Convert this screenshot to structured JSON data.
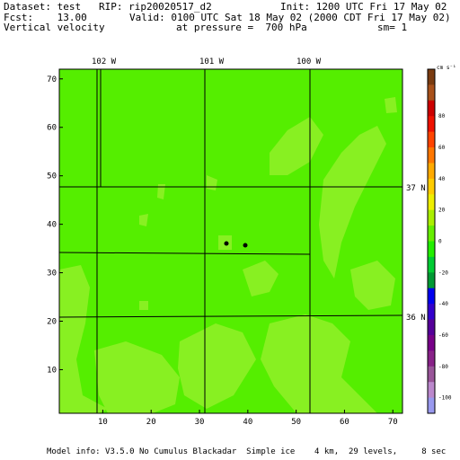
{
  "header": {
    "dataset_line": "Dataset: test   RIP: rip20020517_d2",
    "init_line": "Init: 1200 UTC Fri 17 May 02",
    "fcst_line": "Fcst:    13.00",
    "valid_line": "Valid: 0100 UTC Sat 18 May 02 (2000 CDT Fri 17 May 02)",
    "field_line": "Vertical velocity",
    "pressure_line": "at pressure =  700 hPa",
    "sm_line": "sm= 1"
  },
  "map": {
    "x_ticks": [
      "10",
      "20",
      "30",
      "40",
      "50",
      "60",
      "70"
    ],
    "y_ticks": [
      "10",
      "20",
      "30",
      "40",
      "50",
      "60",
      "70"
    ],
    "lon_labels": [
      "102 W",
      "101 W",
      "100 W"
    ],
    "lat_labels": [
      "37 N",
      "36 N"
    ],
    "background_color": "#55ee00",
    "region_color": "#88f022",
    "boundary_color": "#000000"
  },
  "colorbar": {
    "unit": "cm s⁻¹",
    "labels": [
      "80",
      "60",
      "40",
      "20",
      "0",
      "-20",
      "-40",
      "-60",
      "-80",
      "-100"
    ],
    "colors": [
      "#7a3b10",
      "#a8501a",
      "#cc0000",
      "#ee1100",
      "#ff4400",
      "#ff7700",
      "#ffaa00",
      "#ffcc00",
      "#eeee00",
      "#aaee00",
      "#66ee00",
      "#22ee00",
      "#00cc33",
      "#009933",
      "#0000ee",
      "#3300cc",
      "#550099",
      "#770088",
      "#882288",
      "#995599",
      "#bb88cc",
      "#9999ee"
    ]
  },
  "footer": {
    "text": "Model info: V3.5.0 No Cumulus Blackadar  Simple ice    4 km,  29 levels,     8 sec"
  }
}
